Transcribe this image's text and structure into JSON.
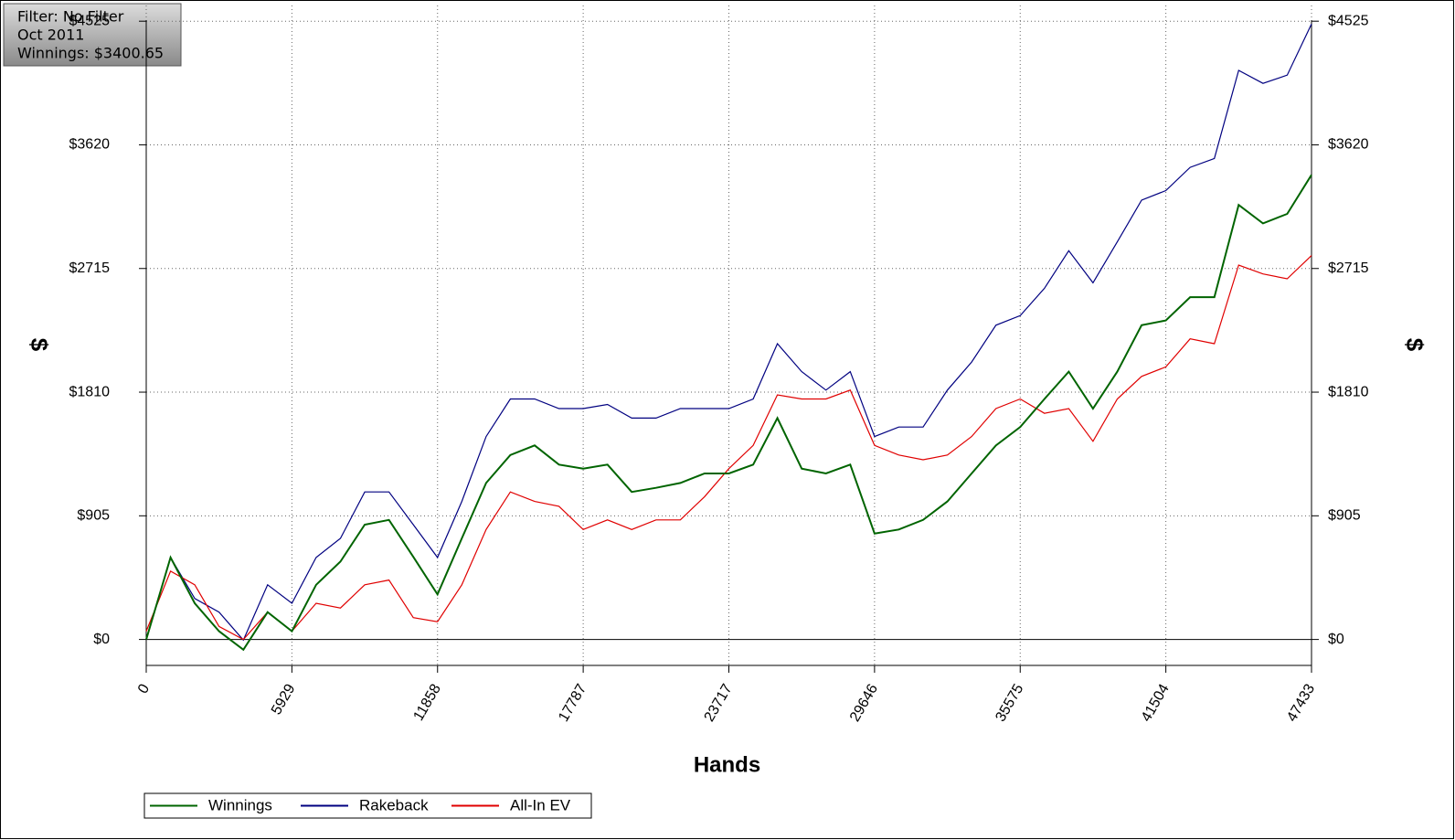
{
  "chart_data": {
    "type": "line",
    "annotations": [
      "Filter: No Filter",
      "Oct 2011",
      "Winnings: $3400.65"
    ],
    "xlabel": "Hands",
    "ylabel": "$",
    "x": [
      0,
      988,
      1976,
      2965,
      3953,
      4941,
      5929,
      6917,
      7905,
      8894,
      9882,
      10870,
      11858,
      12846,
      13834,
      14823,
      15811,
      16799,
      17787,
      18775,
      19763,
      20752,
      21740,
      22728,
      23717,
      24705,
      25693,
      26681,
      27669,
      28658,
      29646,
      30634,
      31622,
      32610,
      33598,
      34587,
      35575,
      36563,
      37551,
      38539,
      39527,
      40516,
      41504,
      42492,
      43480,
      44468,
      45457,
      46445,
      47433
    ],
    "series": [
      {
        "name": "Winnings",
        "color": "#006400",
        "values": [
          0,
          600,
          265,
          60,
          -75,
          200,
          60,
          400,
          570,
          840,
          875,
          605,
          330,
          740,
          1145,
          1350,
          1420,
          1280,
          1250,
          1280,
          1080,
          1110,
          1145,
          1215,
          1215,
          1280,
          1620,
          1250,
          1215,
          1280,
          775,
          805,
          875,
          1010,
          1215,
          1420,
          1555,
          1760,
          1960,
          1690,
          1960,
          2300,
          2335,
          2505,
          2505,
          3180,
          3045,
          3115,
          3400.65
        ]
      },
      {
        "name": "Rakeback",
        "color": "#000080",
        "values": [
          0,
          600,
          300,
          200,
          -5,
          400,
          265,
          600,
          740,
          1080,
          1080,
          840,
          600,
          1010,
          1485,
          1760,
          1760,
          1690,
          1690,
          1720,
          1620,
          1620,
          1690,
          1690,
          1690,
          1760,
          2165,
          1960,
          1825,
          1960,
          1485,
          1555,
          1555,
          1825,
          2030,
          2300,
          2370,
          2570,
          2845,
          2610,
          2910,
          3215,
          3285,
          3455,
          3520,
          4165,
          4070,
          4130,
          4505
        ]
      },
      {
        "name": "All-In EV",
        "color": "#e00000",
        "values": [
          60,
          500,
          400,
          95,
          0,
          200,
          60,
          265,
          230,
          400,
          435,
          160,
          130,
          400,
          805,
          1080,
          1010,
          975,
          805,
          875,
          805,
          875,
          875,
          1045,
          1250,
          1420,
          1790,
          1760,
          1760,
          1825,
          1420,
          1350,
          1315,
          1350,
          1485,
          1690,
          1760,
          1655,
          1690,
          1450,
          1760,
          1925,
          1995,
          2200,
          2165,
          2740,
          2675,
          2640,
          2810
        ]
      }
    ],
    "xlim": [
      0,
      47433
    ],
    "xticks": [
      0,
      5929,
      11858,
      17787,
      23717,
      29646,
      35575,
      41504,
      47433
    ],
    "ylim": [
      -190,
      4640
    ],
    "yticks": [
      {
        "value": 0,
        "label": "$0"
      },
      {
        "value": 905,
        "label": "$905"
      },
      {
        "value": 1810,
        "label": "$1810"
      },
      {
        "value": 2715,
        "label": "$2715"
      },
      {
        "value": 3620,
        "label": "$3620"
      },
      {
        "value": 4525,
        "label": "$4525"
      }
    ],
    "grid": true,
    "legend": "bottom-left"
  }
}
